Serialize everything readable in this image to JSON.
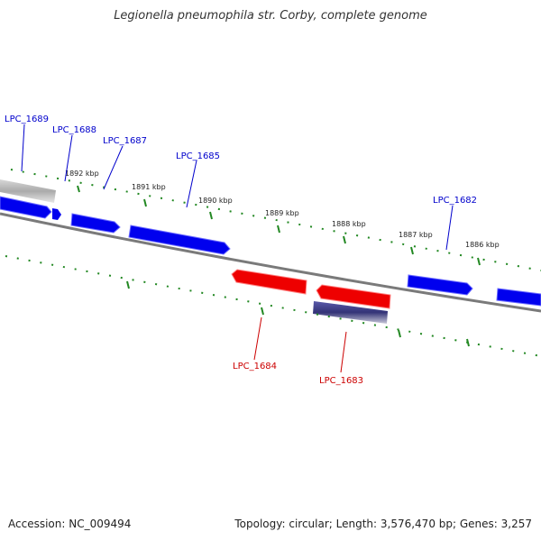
{
  "title": "Legionella pneumophila str. Corby, complete genome",
  "footer": {
    "accession": "Accession: NC_009494",
    "summary": "Topology: circular; Length: 3,576,470 bp; Genes: 3,257"
  },
  "colors": {
    "forward_gene": "#0000ee",
    "reverse_gene": "#ee0000",
    "backbone": "#888888",
    "tick": "#228822",
    "forward_label": "#0000cc",
    "reverse_label": "#cc0000"
  },
  "scale_ticks": [
    "1892 kbp",
    "1891 kbp",
    "1890 kbp",
    "1889 kbp",
    "1888 kbp",
    "1887 kbp",
    "1886 kbp"
  ],
  "genes": [
    {
      "id": "LPC_1689",
      "strand": "forward"
    },
    {
      "id": "LPC_1688",
      "strand": "forward"
    },
    {
      "id": "LPC_1687",
      "strand": "forward"
    },
    {
      "id": "LPC_1685",
      "strand": "forward"
    },
    {
      "id": "LPC_1682",
      "strand": "forward"
    },
    {
      "id": "LPC_1684",
      "strand": "reverse"
    },
    {
      "id": "LPC_1683",
      "strand": "reverse"
    }
  ]
}
